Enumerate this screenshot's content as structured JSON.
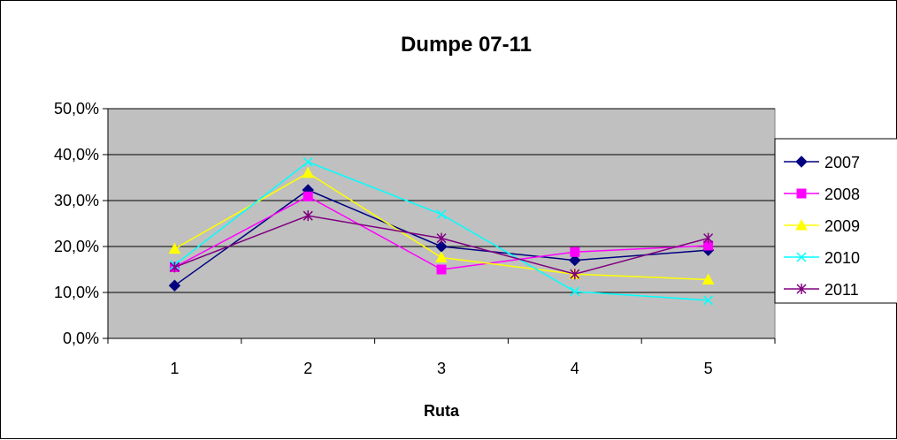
{
  "chart_data": {
    "type": "line",
    "title": "Dumpe 07-11",
    "xlabel": "Ruta",
    "ylabel": "",
    "categories": [
      "1",
      "2",
      "3",
      "4",
      "5"
    ],
    "ylim": [
      0,
      0.5
    ],
    "yticks": [
      0,
      0.1,
      0.2,
      0.3,
      0.4,
      0.5
    ],
    "ytick_labels": [
      "0,0%",
      "10,0%",
      "20,0%",
      "30,0%",
      "40,0%",
      "50,0%"
    ],
    "grid": "horizontal",
    "plot_background": "#c0c0c0",
    "legend_position": "right",
    "series": [
      {
        "name": "2007",
        "color": "#000080",
        "marker": "diamond",
        "values": [
          0.115,
          0.323,
          0.2,
          0.17,
          0.192
        ]
      },
      {
        "name": "2008",
        "color": "#ff00ff",
        "marker": "square",
        "values": [
          0.155,
          0.309,
          0.15,
          0.188,
          0.202
        ]
      },
      {
        "name": "2009",
        "color": "#ffff00",
        "marker": "triangle",
        "values": [
          0.195,
          0.36,
          0.176,
          0.14,
          0.128
        ]
      },
      {
        "name": "2010",
        "color": "#00ffff",
        "marker": "x",
        "values": [
          0.16,
          0.384,
          0.27,
          0.102,
          0.083
        ]
      },
      {
        "name": "2011",
        "color": "#800080",
        "marker": "star",
        "values": [
          0.155,
          0.267,
          0.218,
          0.14,
          0.218
        ]
      }
    ]
  }
}
